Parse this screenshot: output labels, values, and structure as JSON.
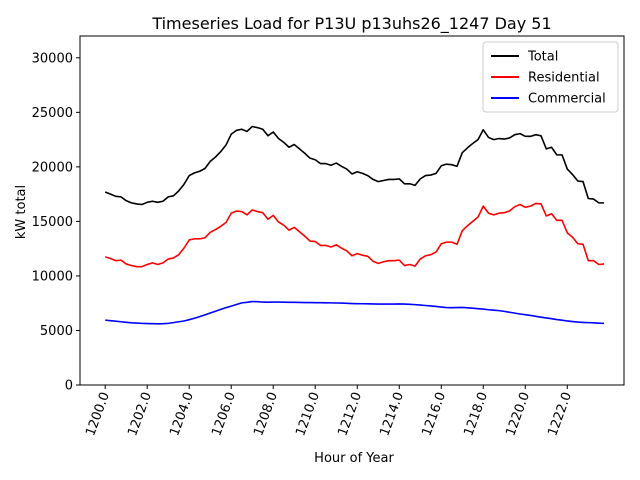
{
  "chart_data": {
    "type": "line",
    "title": "Timeseries Load for P13U p13uhs26_1247  Day 51",
    "xlabel": "Hour of Year",
    "ylabel": "kW total",
    "xlim": [
      1198.8,
      1224.7
    ],
    "ylim": [
      0,
      32000
    ],
    "xticks": [
      1200,
      1202,
      1204,
      1206,
      1208,
      1210,
      1212,
      1214,
      1216,
      1218,
      1220,
      1222
    ],
    "xtick_labels": [
      "1200.0",
      "1202.0",
      "1204.0",
      "1206.0",
      "1208.0",
      "1210.0",
      "1212.0",
      "1214.0",
      "1216.0",
      "1218.0",
      "1220.0",
      "1222.0"
    ],
    "yticks": [
      0,
      5000,
      10000,
      15000,
      20000,
      25000,
      30000
    ],
    "ytick_labels": [
      "0",
      "5000",
      "10000",
      "15000",
      "20000",
      "25000",
      "30000"
    ],
    "legend_position": "top-right",
    "x_start": 1200,
    "x_step": 0.25,
    "series": [
      {
        "name": "Total",
        "color": "#000000",
        "values": [
          17700,
          17500,
          17300,
          17250,
          16900,
          16700,
          16600,
          16550,
          16750,
          16850,
          16750,
          16850,
          17250,
          17350,
          17800,
          18400,
          19200,
          19450,
          19600,
          19850,
          20500,
          20900,
          21400,
          22000,
          23000,
          23350,
          23450,
          23250,
          23700,
          23600,
          23450,
          22850,
          23200,
          22600,
          22250,
          21800,
          22050,
          21650,
          21250,
          20800,
          20650,
          20300,
          20300,
          20150,
          20350,
          20050,
          19800,
          19350,
          19550,
          19400,
          19200,
          18850,
          18650,
          18750,
          18850,
          18850,
          18900,
          18450,
          18450,
          18300,
          18900,
          19200,
          19250,
          19400,
          20100,
          20250,
          20200,
          20050,
          21300,
          21750,
          22150,
          22500,
          23400,
          22700,
          22500,
          22600,
          22550,
          22650,
          22950,
          23050,
          22800,
          22800,
          22950,
          22850,
          21650,
          21800,
          21100,
          21100,
          19800,
          19300,
          18700,
          18650,
          17100,
          17050,
          16700,
          16700
        ]
      },
      {
        "name": "Residential",
        "color": "#ff0000",
        "values": [
          11750,
          11600,
          11400,
          11450,
          11100,
          10950,
          10850,
          10850,
          11050,
          11200,
          11050,
          11200,
          11550,
          11650,
          11950,
          12550,
          13300,
          13400,
          13400,
          13500,
          14000,
          14250,
          14550,
          14900,
          15750,
          15950,
          15900,
          15600,
          16050,
          15900,
          15800,
          15200,
          15550,
          14950,
          14650,
          14200,
          14450,
          14050,
          13650,
          13200,
          13150,
          12800,
          12800,
          12650,
          12850,
          12550,
          12300,
          11850,
          12050,
          11900,
          11800,
          11350,
          11150,
          11300,
          11400,
          11400,
          11450,
          10950,
          11050,
          10900,
          11550,
          11850,
          11950,
          12200,
          12950,
          13100,
          13100,
          12900,
          14150,
          14600,
          15000,
          15400,
          16400,
          15750,
          15600,
          15750,
          15800,
          15950,
          16350,
          16550,
          16300,
          16400,
          16650,
          16600,
          15500,
          15700,
          15100,
          15100,
          13950,
          13550,
          12950,
          12900,
          11400,
          11400,
          11050,
          11100
        ]
      },
      {
        "name": "Commercial",
        "color": "#0000ff",
        "values": [
          5950,
          5900,
          5850,
          5800,
          5750,
          5700,
          5680,
          5650,
          5630,
          5620,
          5610,
          5620,
          5650,
          5720,
          5800,
          5870,
          5990,
          6120,
          6270,
          6430,
          6600,
          6760,
          6930,
          7090,
          7230,
          7380,
          7530,
          7580,
          7650,
          7640,
          7600,
          7590,
          7600,
          7600,
          7590,
          7580,
          7580,
          7570,
          7560,
          7560,
          7550,
          7550,
          7540,
          7530,
          7520,
          7510,
          7490,
          7470,
          7460,
          7450,
          7440,
          7430,
          7420,
          7420,
          7420,
          7420,
          7430,
          7420,
          7400,
          7370,
          7330,
          7290,
          7250,
          7200,
          7150,
          7100,
          7090,
          7100,
          7110,
          7080,
          7040,
          7000,
          6960,
          6900,
          6860,
          6820,
          6750,
          6670,
          6590,
          6510,
          6450,
          6380,
          6300,
          6220,
          6150,
          6080,
          6000,
          5940,
          5870,
          5820,
          5770,
          5740,
          5720,
          5700,
          5670,
          5650
        ]
      }
    ]
  }
}
